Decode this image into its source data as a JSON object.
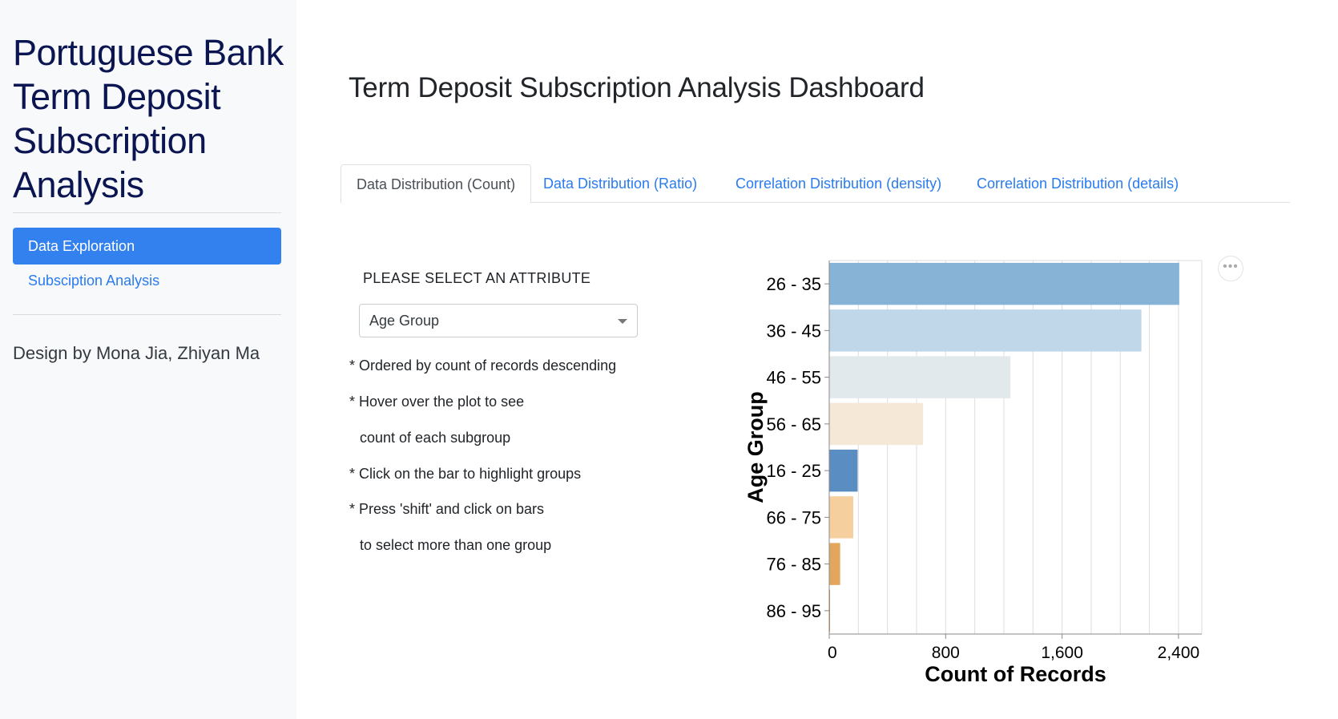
{
  "sidebar": {
    "title": "Portuguese Bank Term Deposit Subscription Analysis",
    "nav": [
      {
        "label": "Data Exploration",
        "active": true
      },
      {
        "label": "Subsciption Analysis",
        "active": false
      }
    ],
    "credit": "Design by Mona Jia, Zhiyan Ma"
  },
  "main": {
    "title": "Term Deposit Subscription Analysis Dashboard",
    "tabs": [
      {
        "label": "Data Distribution (Count)",
        "active": true
      },
      {
        "label": "Data Distribution (Ratio)",
        "active": false
      },
      {
        "label": "Correlation Distribution (density)",
        "active": false
      },
      {
        "label": "Correlation Distribution (details)",
        "active": false
      }
    ],
    "select_label": "PLEASE SELECT AN ATTRIBUTE",
    "select_value": "Age Group",
    "notes": [
      "* Ordered by count of records descending",
      "* Hover over the plot to see",
      "count of each subgroup",
      "* Click on the bar to highlight groups",
      "* Press 'shift' and click on bars",
      "to select more than one group"
    ],
    "menu_icon": "ellipsis-icon"
  },
  "chart_data": {
    "type": "bar",
    "orientation": "horizontal",
    "categories": [
      "26 - 35",
      "36 - 45",
      "46 - 55",
      "56 - 65",
      "16 - 25",
      "66 - 75",
      "76 - 85",
      "86 - 95"
    ],
    "values": [
      2405,
      2145,
      1245,
      645,
      195,
      165,
      75,
      5
    ],
    "colors": [
      "#86b3d6",
      "#bfd7e9",
      "#e1e9ed",
      "#f6e8d7",
      "#5a8ec2",
      "#f6cf9f",
      "#e2a65c",
      "#d08c3a"
    ],
    "xlabel": "Count of Records",
    "ylabel": "Age Group",
    "xlim": [
      0,
      2560
    ],
    "xticks": [
      0,
      800,
      1600,
      2400
    ],
    "xtick_labels": [
      "0",
      "800",
      "1,600",
      "2,400"
    ],
    "grid": true
  }
}
